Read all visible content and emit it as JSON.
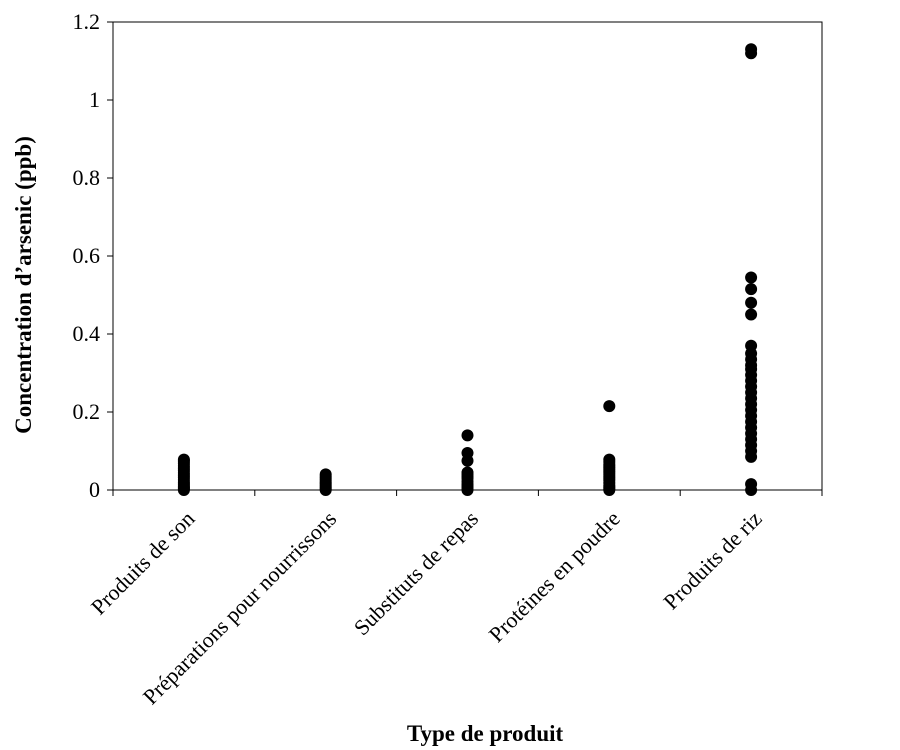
{
  "chart_data": {
    "type": "scatter",
    "title": "",
    "xlabel": "Type de produit",
    "ylabel": "Concentration  d’arsenic (ppb)",
    "ylim": [
      0,
      1.2
    ],
    "yticks": [
      "0",
      "0.2",
      "0.4",
      "0.6",
      "0.8",
      "1",
      "1.2"
    ],
    "grid": false,
    "categories": [
      "Produits de son",
      "Préparations pour nourrissons",
      "Substituts de repas",
      "Protéines en poudre",
      "Produits de riz"
    ],
    "series": [
      {
        "values": [
          [
            0,
            0.003,
            0.006,
            0.01,
            0.015,
            0.02,
            0.026,
            0.032,
            0.038,
            0.044,
            0.05,
            0.056,
            0.062,
            0.068,
            0.074,
            0.078
          ],
          [
            0,
            0.004,
            0.008,
            0.012,
            0.016,
            0.02,
            0.025,
            0.03,
            0.035,
            0.04
          ],
          [
            0,
            0.005,
            0.01,
            0.015,
            0.022,
            0.03,
            0.035,
            0.04,
            0.045,
            0.075,
            0.095,
            0.14
          ],
          [
            0,
            0.004,
            0.008,
            0.012,
            0.018,
            0.025,
            0.03,
            0.035,
            0.04,
            0.045,
            0.05,
            0.055,
            0.06,
            0.065,
            0.072,
            0.078,
            0.215
          ],
          [
            0,
            0.015,
            0.085,
            0.1,
            0.115,
            0.13,
            0.145,
            0.16,
            0.175,
            0.19,
            0.205,
            0.22,
            0.235,
            0.25,
            0.265,
            0.28,
            0.295,
            0.31,
            0.32,
            0.335,
            0.35,
            0.37,
            0.45,
            0.48,
            0.515,
            0.545,
            1.12,
            1.13
          ]
        ]
      }
    ]
  }
}
